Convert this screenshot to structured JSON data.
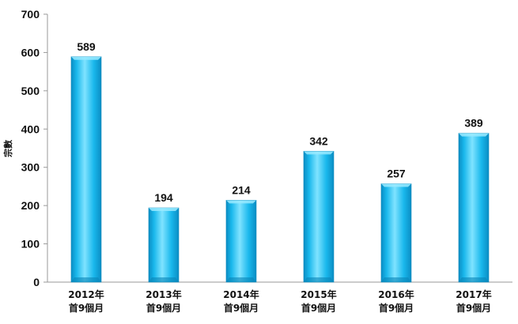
{
  "chart_data": {
    "type": "bar",
    "title": "",
    "xlabel": "",
    "ylabel": "宗數",
    "ylim": [
      0,
      700
    ],
    "yticks": [
      0,
      100,
      200,
      300,
      400,
      500,
      600,
      700
    ],
    "categories": [
      [
        "2012年",
        "首9個月"
      ],
      [
        "2013年",
        "首9個月"
      ],
      [
        "2014年",
        "首9個月"
      ],
      [
        "2015年",
        "首9個月"
      ],
      [
        "2016年",
        "首9個月"
      ],
      [
        "2017年",
        "首9個月"
      ]
    ],
    "values": [
      589,
      194,
      214,
      342,
      257,
      389
    ],
    "grid": false,
    "legend": "none",
    "colors": {
      "bar_light": "#7fe3ff",
      "bar_main": "#1ab8ec",
      "bar_dark": "#0a8dc4",
      "axis": "#999999"
    }
  }
}
